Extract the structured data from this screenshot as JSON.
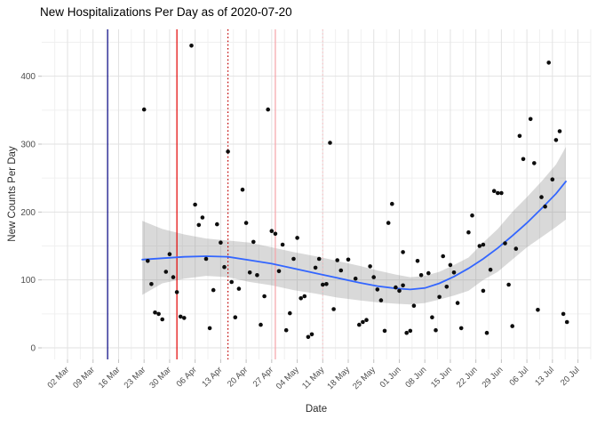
{
  "chart_data": {
    "type": "scatter",
    "title": "New Hospitalizations Per Day as of 2020-07-20",
    "xlabel": "Date",
    "ylabel": "New Counts Per Day",
    "x_start_date": "2020-03-02",
    "x_tick_labels": [
      "02 Mar",
      "09 Mar",
      "16 Mar",
      "23 Mar",
      "30 Mar",
      "06 Apr",
      "13 Apr",
      "20 Apr",
      "27 Apr",
      "04 May",
      "11 May",
      "18 May",
      "25 May",
      "01 Jun",
      "08 Jun",
      "15 Jun",
      "22 Jun",
      "29 Jun",
      "06 Jul",
      "13 Jul",
      "20 Jul"
    ],
    "y_ticks": [
      0,
      100,
      200,
      300,
      400
    ],
    "y_minor_ticks": [
      50,
      150,
      250,
      350,
      450
    ],
    "ylim": [
      -17,
      469
    ],
    "xlim_days": [
      -7.07,
      143.52
    ],
    "grid": true,
    "legend": "none",
    "colors": {
      "point": "#0d0d0d",
      "smooth_line": "#3366FF",
      "ribbon": "rgba(128,128,128,0.30)",
      "grid_major": "#e2e2e2",
      "grid_minor": "#f0f0f0",
      "tick_mark": "#c0c0c0",
      "tick_text": "#4d4d4d",
      "navy_line": "#000080",
      "red_line": "#e30000",
      "red_dotted_line": "#c00000",
      "pink_line": "#f5a2a8",
      "pink_dotted_line": "#f7c2c6"
    },
    "event_lines": [
      {
        "date": "2020-03-13",
        "style": "solid",
        "color_key": "navy_line"
      },
      {
        "date": "2020-04-01",
        "style": "solid",
        "color_key": "red_line"
      },
      {
        "date": "2020-04-15",
        "style": "dotted",
        "color_key": "red_dotted_line"
      },
      {
        "date": "2020-04-28",
        "style": "solid",
        "color_key": "pink_line"
      },
      {
        "date": "2020-05-11",
        "style": "dotted",
        "color_key": "pink_dotted_line"
      }
    ],
    "points": [
      {
        "date": "2020-03-23",
        "value": 351
      },
      {
        "date": "2020-03-24",
        "value": 128
      },
      {
        "date": "2020-03-25",
        "value": 94
      },
      {
        "date": "2020-03-26",
        "value": 52
      },
      {
        "date": "2020-03-27",
        "value": 50
      },
      {
        "date": "2020-03-28",
        "value": 42
      },
      {
        "date": "2020-03-29",
        "value": 112
      },
      {
        "date": "2020-03-30",
        "value": 138
      },
      {
        "date": "2020-03-31",
        "value": 104
      },
      {
        "date": "2020-04-01",
        "value": 82
      },
      {
        "date": "2020-04-02",
        "value": 46
      },
      {
        "date": "2020-04-03",
        "value": 44
      },
      {
        "date": "2020-04-05",
        "value": 445
      },
      {
        "date": "2020-04-06",
        "value": 211
      },
      {
        "date": "2020-04-07",
        "value": 181
      },
      {
        "date": "2020-04-08",
        "value": 192
      },
      {
        "date": "2020-04-09",
        "value": 131
      },
      {
        "date": "2020-04-10",
        "value": 29
      },
      {
        "date": "2020-04-11",
        "value": 85
      },
      {
        "date": "2020-04-12",
        "value": 182
      },
      {
        "date": "2020-04-13",
        "value": 155
      },
      {
        "date": "2020-04-14",
        "value": 119
      },
      {
        "date": "2020-04-15",
        "value": 289
      },
      {
        "date": "2020-04-16",
        "value": 97
      },
      {
        "date": "2020-04-17",
        "value": 45
      },
      {
        "date": "2020-04-18",
        "value": 87
      },
      {
        "date": "2020-04-19",
        "value": 233
      },
      {
        "date": "2020-04-20",
        "value": 184
      },
      {
        "date": "2020-04-21",
        "value": 111
      },
      {
        "date": "2020-04-22",
        "value": 156
      },
      {
        "date": "2020-04-23",
        "value": 107
      },
      {
        "date": "2020-04-24",
        "value": 34
      },
      {
        "date": "2020-04-25",
        "value": 76
      },
      {
        "date": "2020-04-26",
        "value": 351
      },
      {
        "date": "2020-04-27",
        "value": 172
      },
      {
        "date": "2020-04-28",
        "value": 168
      },
      {
        "date": "2020-04-29",
        "value": 113
      },
      {
        "date": "2020-04-30",
        "value": 152
      },
      {
        "date": "2020-05-01",
        "value": 26
      },
      {
        "date": "2020-05-02",
        "value": 51
      },
      {
        "date": "2020-05-03",
        "value": 131
      },
      {
        "date": "2020-05-04",
        "value": 162
      },
      {
        "date": "2020-05-05",
        "value": 73
      },
      {
        "date": "2020-05-06",
        "value": 76
      },
      {
        "date": "2020-05-07",
        "value": 16
      },
      {
        "date": "2020-05-08",
        "value": 20
      },
      {
        "date": "2020-05-09",
        "value": 118
      },
      {
        "date": "2020-05-10",
        "value": 131
      },
      {
        "date": "2020-05-11",
        "value": 93
      },
      {
        "date": "2020-05-12",
        "value": 94
      },
      {
        "date": "2020-05-13",
        "value": 302
      },
      {
        "date": "2020-05-14",
        "value": 57
      },
      {
        "date": "2020-05-15",
        "value": 129
      },
      {
        "date": "2020-05-16",
        "value": 114
      },
      {
        "date": "2020-05-18",
        "value": 130
      },
      {
        "date": "2020-05-20",
        "value": 102
      },
      {
        "date": "2020-05-21",
        "value": 34
      },
      {
        "date": "2020-05-22",
        "value": 38
      },
      {
        "date": "2020-05-23",
        "value": 41
      },
      {
        "date": "2020-05-24",
        "value": 120
      },
      {
        "date": "2020-05-25",
        "value": 104
      },
      {
        "date": "2020-05-26",
        "value": 86
      },
      {
        "date": "2020-05-27",
        "value": 70
      },
      {
        "date": "2020-05-28",
        "value": 25
      },
      {
        "date": "2020-05-29",
        "value": 184
      },
      {
        "date": "2020-05-30",
        "value": 212
      },
      {
        "date": "2020-05-31",
        "value": 89
      },
      {
        "date": "2020-06-01",
        "value": 84
      },
      {
        "date": "2020-06-02",
        "value": 141
      },
      {
        "date": "2020-06-02",
        "value": 92
      },
      {
        "date": "2020-06-03",
        "value": 22
      },
      {
        "date": "2020-06-04",
        "value": 25
      },
      {
        "date": "2020-06-05",
        "value": 62
      },
      {
        "date": "2020-06-06",
        "value": 128
      },
      {
        "date": "2020-06-07",
        "value": 107
      },
      {
        "date": "2020-06-09",
        "value": 110
      },
      {
        "date": "2020-06-10",
        "value": 45
      },
      {
        "date": "2020-06-11",
        "value": 26
      },
      {
        "date": "2020-06-12",
        "value": 75
      },
      {
        "date": "2020-06-13",
        "value": 135
      },
      {
        "date": "2020-06-14",
        "value": 90
      },
      {
        "date": "2020-06-15",
        "value": 122
      },
      {
        "date": "2020-06-16",
        "value": 111
      },
      {
        "date": "2020-06-17",
        "value": 66
      },
      {
        "date": "2020-06-18",
        "value": 29
      },
      {
        "date": "2020-06-20",
        "value": 170
      },
      {
        "date": "2020-06-21",
        "value": 195
      },
      {
        "date": "2020-06-23",
        "value": 150
      },
      {
        "date": "2020-06-24",
        "value": 152
      },
      {
        "date": "2020-06-24",
        "value": 84
      },
      {
        "date": "2020-06-25",
        "value": 22
      },
      {
        "date": "2020-06-26",
        "value": 115
      },
      {
        "date": "2020-06-27",
        "value": 231
      },
      {
        "date": "2020-06-28",
        "value": 228
      },
      {
        "date": "2020-06-29",
        "value": 228
      },
      {
        "date": "2020-06-30",
        "value": 154
      },
      {
        "date": "2020-07-01",
        "value": 93
      },
      {
        "date": "2020-07-02",
        "value": 32
      },
      {
        "date": "2020-07-03",
        "value": 146
      },
      {
        "date": "2020-07-04",
        "value": 312
      },
      {
        "date": "2020-07-05",
        "value": 278
      },
      {
        "date": "2020-07-07",
        "value": 337
      },
      {
        "date": "2020-07-08",
        "value": 272
      },
      {
        "date": "2020-07-09",
        "value": 56
      },
      {
        "date": "2020-07-10",
        "value": 222
      },
      {
        "date": "2020-07-11",
        "value": 208
      },
      {
        "date": "2020-07-12",
        "value": 420
      },
      {
        "date": "2020-07-13",
        "value": 248
      },
      {
        "date": "2020-07-14",
        "value": 306
      },
      {
        "date": "2020-07-15",
        "value": 319
      },
      {
        "date": "2020-07-16",
        "value": 50
      },
      {
        "date": "2020-07-17",
        "value": 38
      }
    ],
    "smooth_line": [
      [
        20.5,
        130
      ],
      [
        26,
        132
      ],
      [
        32,
        134
      ],
      [
        38,
        135
      ],
      [
        44,
        134
      ],
      [
        50,
        129
      ],
      [
        56,
        124
      ],
      [
        62,
        117
      ],
      [
        68,
        110
      ],
      [
        74,
        103
      ],
      [
        80,
        96
      ],
      [
        85,
        91
      ],
      [
        90,
        87.5
      ],
      [
        94,
        86
      ],
      [
        98,
        88
      ],
      [
        102,
        95
      ],
      [
        106,
        105
      ],
      [
        110,
        117
      ],
      [
        114,
        131
      ],
      [
        118,
        147
      ],
      [
        122,
        165
      ],
      [
        126,
        184
      ],
      [
        130,
        205
      ],
      [
        134,
        227
      ],
      [
        136.7,
        245
      ]
    ],
    "ci_band": [
      [
        20.5,
        78,
        187
      ],
      [
        26,
        95,
        175
      ],
      [
        32,
        102,
        167
      ],
      [
        38,
        106,
        161
      ],
      [
        44,
        104,
        158
      ],
      [
        50,
        97,
        155
      ],
      [
        56,
        92,
        148
      ],
      [
        62,
        85,
        141
      ],
      [
        68,
        80,
        135
      ],
      [
        74,
        74,
        128
      ],
      [
        80,
        70,
        121
      ],
      [
        85,
        67,
        114
      ],
      [
        90,
        65,
        108
      ],
      [
        94,
        64,
        104
      ],
      [
        98,
        66,
        106
      ],
      [
        102,
        71,
        112
      ],
      [
        106,
        77,
        122
      ],
      [
        110,
        84,
        133
      ],
      [
        114,
        100,
        155
      ],
      [
        118,
        112,
        175
      ],
      [
        122,
        130,
        200
      ],
      [
        126,
        148,
        222
      ],
      [
        130,
        163,
        245
      ],
      [
        134,
        178,
        270
      ],
      [
        136.7,
        189,
        296
      ]
    ]
  }
}
